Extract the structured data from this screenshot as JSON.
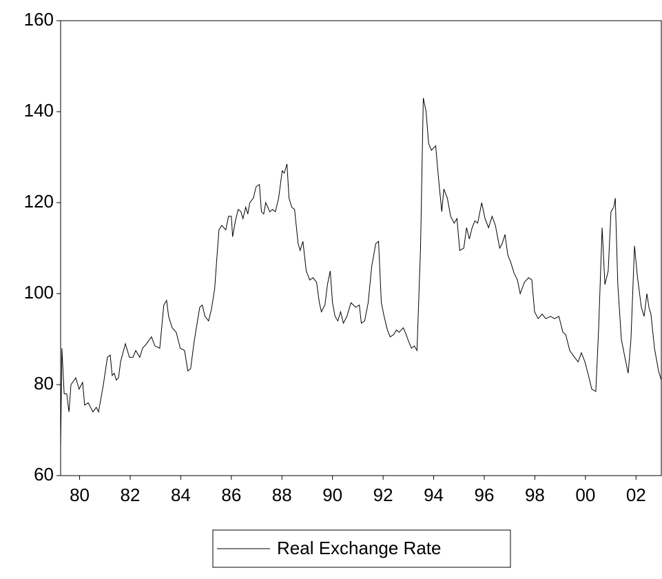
{
  "chart_data": {
    "type": "line",
    "x": [
      1979.25,
      1979.3,
      1979.39,
      1979.49,
      1979.58,
      1979.66,
      1979.85,
      1979.98,
      1980.12,
      1980.2,
      1980.34,
      1980.53,
      1980.66,
      1980.75,
      1980.94,
      1981.1,
      1981.21,
      1981.29,
      1981.37,
      1981.45,
      1981.54,
      1981.62,
      1981.81,
      1981.97,
      1982.11,
      1982.22,
      1982.38,
      1982.49,
      1982.65,
      1982.84,
      1982.98,
      1983.17,
      1983.33,
      1983.44,
      1983.52,
      1983.66,
      1983.82,
      1983.98,
      1984.15,
      1984.28,
      1984.39,
      1984.53,
      1984.75,
      1984.85,
      1984.96,
      1985.1,
      1985.21,
      1985.34,
      1985.43,
      1985.51,
      1985.62,
      1985.78,
      1985.89,
      1986.0,
      1986.05,
      1986.16,
      1986.27,
      1986.38,
      1986.46,
      1986.57,
      1986.65,
      1986.73,
      1986.87,
      1986.98,
      1987.11,
      1987.19,
      1987.28,
      1987.36,
      1987.52,
      1987.63,
      1987.74,
      1987.87,
      1988.01,
      1988.09,
      1988.2,
      1988.28,
      1988.39,
      1988.5,
      1988.64,
      1988.72,
      1988.83,
      1988.96,
      1989.1,
      1989.23,
      1989.37,
      1989.48,
      1989.56,
      1989.7,
      1989.8,
      1989.91,
      1990.0,
      1990.1,
      1990.21,
      1990.32,
      1990.43,
      1990.57,
      1990.73,
      1990.92,
      1991.06,
      1991.14,
      1991.27,
      1991.41,
      1991.55,
      1991.71,
      1991.82,
      1991.93,
      1992.04,
      1992.17,
      1992.28,
      1992.42,
      1992.53,
      1992.63,
      1992.8,
      1992.91,
      1993.01,
      1993.12,
      1993.23,
      1993.34,
      1993.48,
      1993.59,
      1993.7,
      1993.8,
      1993.91,
      1994.08,
      1994.18,
      1994.32,
      1994.4,
      1994.54,
      1994.67,
      1994.81,
      1994.92,
      1995.03,
      1995.19,
      1995.3,
      1995.41,
      1995.52,
      1995.63,
      1995.74,
      1995.9,
      1996.03,
      1996.17,
      1996.31,
      1996.44,
      1996.61,
      1996.71,
      1996.82,
      1996.93,
      1997.04,
      1997.18,
      1997.31,
      1997.42,
      1997.59,
      1997.75,
      1997.88,
      1997.99,
      1998.13,
      1998.29,
      1998.43,
      1998.62,
      1998.78,
      1998.95,
      1999.11,
      1999.22,
      1999.38,
      1999.57,
      1999.71,
      1999.84,
      1999.98,
      2000.12,
      2000.25,
      2000.41,
      2000.52,
      2000.66,
      2000.77,
      2000.9,
      2001.01,
      2001.12,
      2001.18,
      2001.28,
      2001.42,
      2001.56,
      2001.69,
      2001.8,
      2001.94,
      2002.05,
      2002.21,
      2002.32,
      2002.43,
      2002.51,
      2002.59,
      2002.73,
      2002.89,
      2003.0
    ],
    "series": [
      {
        "name": "Real Exchange Rate",
        "color": "#000000",
        "values": [
          66,
          88,
          78,
          78,
          74,
          80,
          81.5,
          79,
          80.5,
          75.5,
          76,
          74,
          75,
          74,
          80,
          86,
          86.5,
          82,
          82.5,
          81,
          81.5,
          85,
          89,
          86,
          86,
          87.5,
          86,
          88,
          89,
          90.5,
          88.5,
          88,
          97.5,
          98.5,
          95,
          92.5,
          91.5,
          88,
          87.5,
          83,
          83.5,
          89.5,
          97,
          97.5,
          95,
          94,
          96.5,
          101,
          108,
          114,
          115,
          114,
          117,
          117,
          112.5,
          116,
          118.5,
          118,
          116.5,
          119,
          117.5,
          120,
          121,
          123.5,
          124,
          118,
          117.5,
          120,
          118,
          118.5,
          118,
          121,
          127,
          126.5,
          128.5,
          121,
          119,
          118.5,
          111,
          109.5,
          111.5,
          105,
          103,
          103.5,
          102.5,
          98,
          96,
          97.5,
          102,
          105,
          98,
          95,
          94,
          96,
          93.5,
          95,
          98,
          97,
          97.5,
          93.5,
          94,
          98,
          106,
          111,
          111.5,
          98,
          95,
          92,
          90.5,
          91,
          92,
          91.5,
          92.5,
          91,
          89.5,
          88,
          88.5,
          87.5,
          110,
          143,
          140,
          133,
          131.5,
          132.5,
          126,
          118,
          123,
          121,
          117,
          115.5,
          116.5,
          109.5,
          110,
          114.5,
          112,
          114.5,
          116,
          115.5,
          120,
          116.5,
          114.5,
          117,
          115,
          110,
          111,
          113,
          108.5,
          107,
          104.5,
          103,
          100,
          102.5,
          103.5,
          103,
          96,
          94.5,
          95.5,
          94.5,
          95,
          94.5,
          95,
          91.5,
          91,
          87.5,
          86,
          85,
          87,
          85,
          82,
          79,
          78.5,
          92,
          114.5,
          102,
          105,
          118,
          119,
          121,
          102,
          90,
          86,
          82.5,
          90,
          110.5,
          104,
          97,
          95,
          100,
          97,
          95.5,
          88,
          83,
          81
        ]
      }
    ],
    "xlim": [
      1979.25,
      2003.0
    ],
    "xticks": [
      {
        "value": 1980,
        "label": "80"
      },
      {
        "value": 1982,
        "label": "82"
      },
      {
        "value": 1984,
        "label": "84"
      },
      {
        "value": 1986,
        "label": "86"
      },
      {
        "value": 1988,
        "label": "88"
      },
      {
        "value": 1990,
        "label": "90"
      },
      {
        "value": 1992,
        "label": "92"
      },
      {
        "value": 1994,
        "label": "94"
      },
      {
        "value": 1996,
        "label": "96"
      },
      {
        "value": 1998,
        "label": "98"
      },
      {
        "value": 2000,
        "label": "00"
      },
      {
        "value": 2002,
        "label": "02"
      }
    ],
    "ylim": [
      60,
      160
    ],
    "yticks": [
      60,
      80,
      100,
      120,
      140,
      160
    ],
    "grid": false
  }
}
